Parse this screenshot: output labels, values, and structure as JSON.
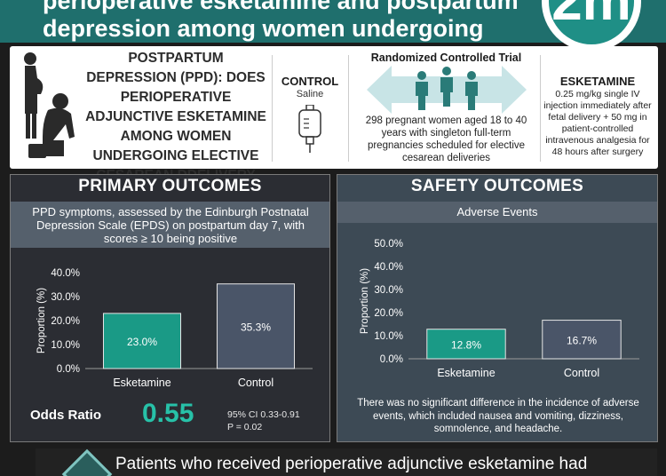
{
  "header": {
    "title": "perioperative esketamine and postpartum depression among women undergoing elective cesarean delivery",
    "logo_text": "2m"
  },
  "question": {
    "text": "POSTPARTUM DEPRESSION (PPD): DOES PERIOPERATIVE ADJUNCTIVE ESKETAMINE AMONG WOMEN UNDERGOING ELECTIVE CESAREAN DDELIVERY PREVENT PPD?"
  },
  "control": {
    "title": "CONTROL",
    "subtitle": "Saline"
  },
  "rct": {
    "title": "Randomized Controlled Trial",
    "description": "298 pregnant women aged 18 to 40 years with singleton full-term pregnancies scheduled for elective cesarean deliveries"
  },
  "esketamine": {
    "title": "ESKETAMINE",
    "description": "0.25 mg/kg single IV injection immediately after fetal delivery + 50 mg in patient-controlled intravenous analgesia for 48 hours after surgery"
  },
  "colors": {
    "header_teal": "#1f6f6d",
    "esketamine_bar": "#1a9a86",
    "control_bar": "#4a5568",
    "odds_ratio": "#27c1a8",
    "primary_bg": "#2b2d33",
    "safety_bg": "#3d4a55"
  },
  "primary": {
    "title": "PRIMARY OUTCOMES",
    "description": "PPD symptoms, assessed by the Edinburgh Postnatal Depression Scale (EPDS) on postpartum day 7, with scores ≥ 10 being positive",
    "odds_ratio_label": "Odds Ratio",
    "odds_ratio_value": "0.55",
    "ci": "95% CI 0.33-0.91",
    "p_value": "P = 0.02"
  },
  "safety": {
    "title": "SAFETY OUTCOMES",
    "subtitle": "Adverse Events",
    "note": "There was no significant difference in the incidence of adverse events, which included nausea and vomiting, dizziness, somnolence, and headache."
  },
  "footer": {
    "text": "Patients who received perioperative adjunctive esketamine had"
  },
  "chart_data": [
    {
      "type": "bar",
      "categories": [
        "Esketamine",
        "Control"
      ],
      "values": [
        23.0,
        35.3
      ],
      "value_labels": [
        "23.0%",
        "35.3%"
      ],
      "ylabel": "Proportion (%)",
      "ylim": [
        0,
        40
      ],
      "yticks": [
        "0.0%",
        "10.0%",
        "20.0%",
        "30.0%",
        "40.0%"
      ],
      "grid": false
    },
    {
      "type": "bar",
      "categories": [
        "Esketamine",
        "Control"
      ],
      "values": [
        12.8,
        16.7
      ],
      "value_labels": [
        "12.8%",
        "16.7%"
      ],
      "ylabel": "Proportion (%)",
      "ylim": [
        0,
        50
      ],
      "yticks": [
        "0.0%",
        "10.0%",
        "20.0%",
        "30.0%",
        "40.0%",
        "50.0%"
      ],
      "grid": false
    }
  ]
}
